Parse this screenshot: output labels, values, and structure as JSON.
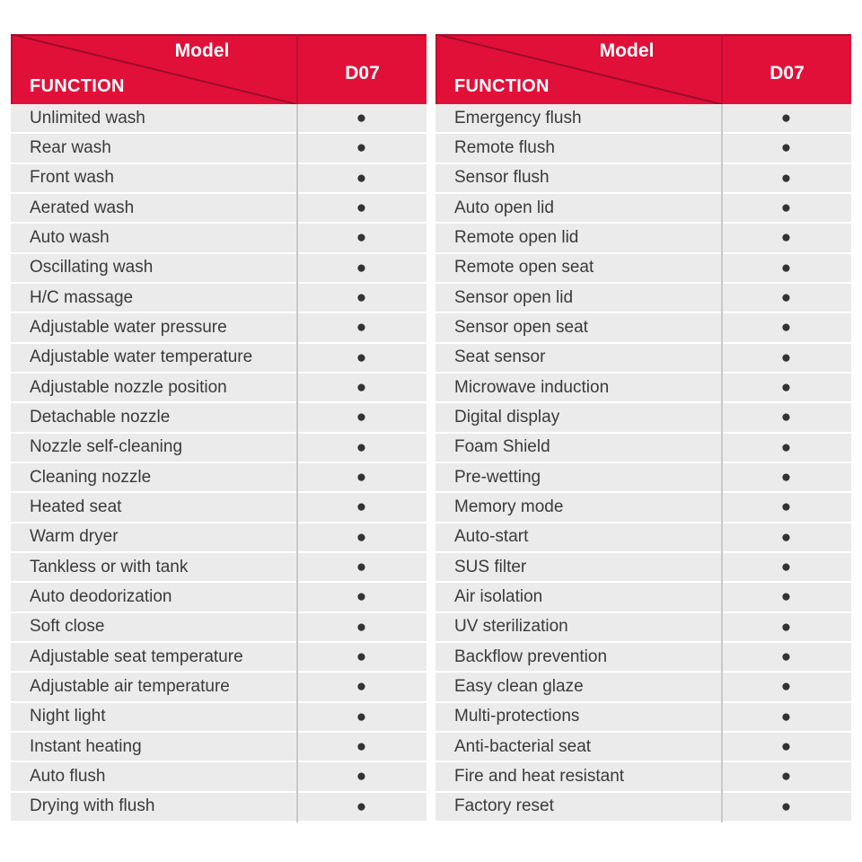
{
  "page": {
    "background_color": "#ffffff",
    "header_color": "#e11039",
    "header_line_color": "#9c0c2c",
    "row_color": "#ebebeb",
    "text_color": "#3a3a3a",
    "dot_glyph": "●"
  },
  "tables": [
    {
      "header": {
        "model_label": "Model",
        "function_label": "FUNCTION",
        "model_col_label": "D07"
      },
      "rows": [
        {
          "function": "Unlimited wash",
          "d07": "●"
        },
        {
          "function": "Rear wash",
          "d07": "●"
        },
        {
          "function": "Front wash",
          "d07": "●"
        },
        {
          "function": "Aerated wash",
          "d07": "●"
        },
        {
          "function": "Auto wash",
          "d07": "●"
        },
        {
          "function": "Oscillating wash",
          "d07": "●"
        },
        {
          "function": "H/C massage",
          "d07": "●"
        },
        {
          "function": "Adjustable water pressure",
          "d07": "●"
        },
        {
          "function": "Adjustable water temperature",
          "d07": "●"
        },
        {
          "function": "Adjustable nozzle position",
          "d07": "●"
        },
        {
          "function": "Detachable nozzle",
          "d07": "●"
        },
        {
          "function": "Nozzle self-cleaning",
          "d07": "●"
        },
        {
          "function": "Cleaning nozzle",
          "d07": "●"
        },
        {
          "function": "Heated seat",
          "d07": "●"
        },
        {
          "function": "Warm dryer",
          "d07": "●"
        },
        {
          "function": "Tankless or with tank",
          "d07": "●"
        },
        {
          "function": "Auto deodorization",
          "d07": "●"
        },
        {
          "function": "Soft close",
          "d07": "●"
        },
        {
          "function": "Adjustable seat temperature",
          "d07": "●"
        },
        {
          "function": "Adjustable air temperature",
          "d07": "●"
        },
        {
          "function": "Night light",
          "d07": "●"
        },
        {
          "function": "Instant heating",
          "d07": "●"
        },
        {
          "function": "Auto flush",
          "d07": "●"
        },
        {
          "function": "Drying with flush",
          "d07": "●"
        }
      ]
    },
    {
      "header": {
        "model_label": "Model",
        "function_label": "FUNCTION",
        "model_col_label": "D07"
      },
      "rows": [
        {
          "function": "Emergency flush",
          "d07": "●"
        },
        {
          "function": "Remote flush",
          "d07": "●"
        },
        {
          "function": "Sensor flush",
          "d07": "●"
        },
        {
          "function": "Auto open lid",
          "d07": "●"
        },
        {
          "function": "Remote open lid",
          "d07": "●"
        },
        {
          "function": "Remote open seat",
          "d07": "●"
        },
        {
          "function": "Sensor open lid",
          "d07": "●"
        },
        {
          "function": "Sensor open seat",
          "d07": "●"
        },
        {
          "function": "Seat sensor",
          "d07": "●"
        },
        {
          "function": "Microwave induction",
          "d07": "●"
        },
        {
          "function": "Digital display",
          "d07": "●"
        },
        {
          "function": "Foam Shield",
          "d07": "●"
        },
        {
          "function": "Pre-wetting",
          "d07": "●"
        },
        {
          "function": "Memory mode",
          "d07": "●"
        },
        {
          "function": "Auto-start",
          "d07": "●"
        },
        {
          "function": "SUS filter",
          "d07": "●"
        },
        {
          "function": "Air isolation",
          "d07": "●"
        },
        {
          "function": "UV sterilization",
          "d07": "●"
        },
        {
          "function": "Backflow prevention",
          "d07": "●"
        },
        {
          "function": "Easy clean glaze",
          "d07": "●"
        },
        {
          "function": "Multi-protections",
          "d07": "●"
        },
        {
          "function": "Anti-bacterial seat",
          "d07": "●"
        },
        {
          "function": "Fire and heat resistant",
          "d07": "●"
        },
        {
          "function": "Factory reset",
          "d07": "●"
        }
      ]
    }
  ]
}
